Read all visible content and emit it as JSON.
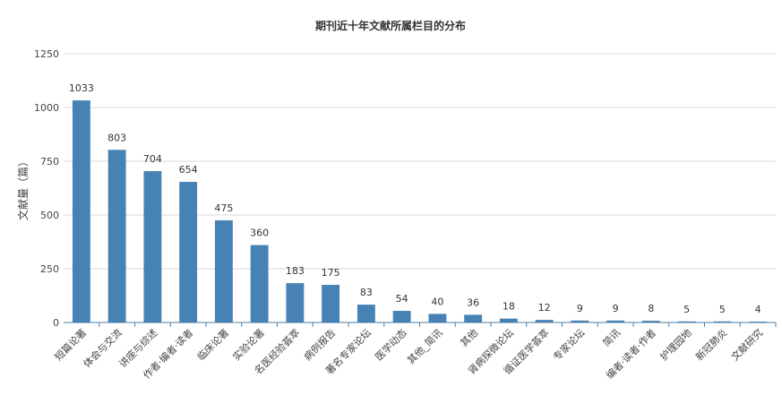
{
  "chart_data": {
    "type": "bar",
    "title": "期刊近十年文献所属栏目的分布",
    "ylabel": "文献量（篇）",
    "xlabel": "",
    "ylim": [
      0,
      1250
    ],
    "yticks": [
      0,
      250,
      500,
      750,
      1000,
      1250
    ],
    "grid": true,
    "bar_color": "#4682b4",
    "categories": [
      "短篇论著",
      "体会与交流",
      "讲座与综述",
      "作者·编者·读者",
      "临床论著",
      "实验论著",
      "名医经验荟萃",
      "病例报告",
      "著名专家论坛",
      "医学动态",
      "其他_简讯",
      "其他",
      "肾病探微论坛",
      "循证医学荟萃",
      "专家论坛",
      "简讯",
      "编者·读者·作者",
      "护理园地",
      "新冠肺炎",
      "文献研究"
    ],
    "values": [
      1033,
      803,
      704,
      654,
      475,
      360,
      183,
      175,
      83,
      54,
      40,
      36,
      18,
      12,
      9,
      9,
      8,
      5,
      5,
      4
    ]
  }
}
